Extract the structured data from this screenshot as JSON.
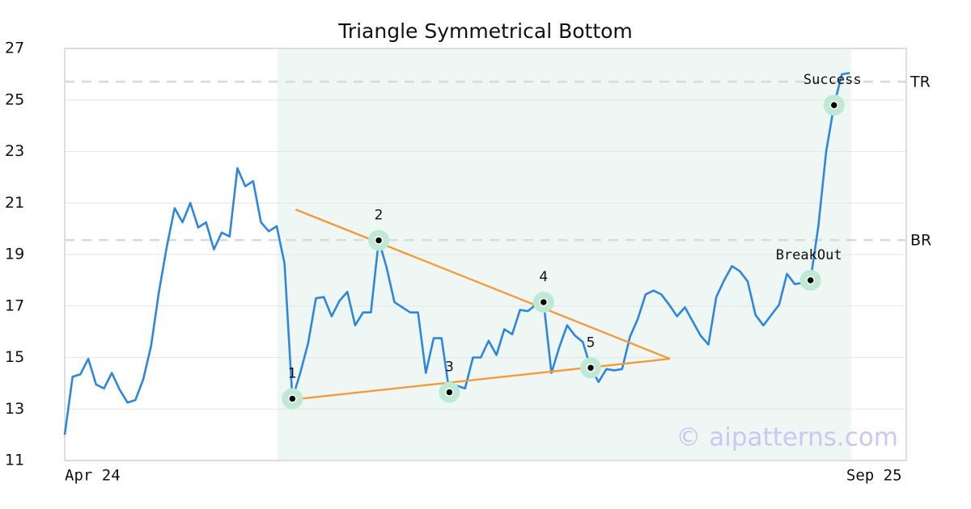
{
  "chart_data": {
    "type": "line",
    "title": "Triangle Symmetrical Bottom",
    "series": [
      {
        "color": "#2e86de",
        "values": [
          12.0,
          14.25,
          14.35,
          14.95,
          13.95,
          13.8,
          14.4,
          13.75,
          13.25,
          13.35,
          14.15,
          15.45,
          17.55,
          19.3,
          20.8,
          20.25,
          21.0,
          20.05,
          20.25,
          19.2,
          19.85,
          19.7,
          22.35,
          21.65,
          21.85,
          20.25,
          19.9,
          20.1,
          18.65,
          13.4,
          14.4,
          15.55,
          17.3,
          17.35,
          16.6,
          17.2,
          17.55,
          16.25,
          16.75,
          16.75,
          19.55,
          18.5,
          17.15,
          16.95,
          16.75,
          16.75,
          14.4,
          15.75,
          15.75,
          13.65,
          13.9,
          13.8,
          15.0,
          15.0,
          15.65,
          15.1,
          16.1,
          15.9,
          16.85,
          16.8,
          17.05,
          17.15,
          14.4,
          15.4,
          16.25,
          15.85,
          15.6,
          14.6,
          14.05,
          14.55,
          14.5,
          14.55,
          15.8,
          16.5,
          17.45,
          17.6,
          17.45,
          17.05,
          16.6,
          16.95,
          16.4,
          15.85,
          15.5,
          17.35,
          18.0,
          18.55,
          18.35,
          17.95,
          16.65,
          16.25,
          16.65,
          17.05,
          18.25,
          17.85,
          17.9,
          18.0,
          20.1,
          23.0,
          24.8,
          26.0,
          26.05
        ]
      }
    ],
    "xlim": [
      0,
      107.2
    ],
    "xticks": [
      {
        "value": 0,
        "label": "Apr 24"
      },
      {
        "value": 103.1,
        "label": "Sep 25"
      }
    ],
    "ylim": [
      11,
      27
    ],
    "yticks": [
      11,
      13,
      15,
      17,
      19,
      21,
      23,
      25,
      27
    ],
    "grid": true,
    "highlight_xlim": [
      27.1,
      100.2
    ],
    "levels": [
      {
        "label": "TR",
        "value": 25.71
      },
      {
        "label": "BR",
        "value": 19.56
      }
    ],
    "triangle": [
      {
        "color": "#f59a3c",
        "x": [
          29.4,
          77.1
        ],
        "y": [
          20.75,
          14.95
        ]
      },
      {
        "color": "#f59a3c",
        "x": [
          29.4,
          77.1
        ],
        "y": [
          13.38,
          14.95
        ]
      }
    ],
    "points": [
      {
        "x": 29,
        "label": "1"
      },
      {
        "x": 40,
        "label": "2"
      },
      {
        "x": 49,
        "label": "3"
      },
      {
        "x": 61,
        "label": "4"
      },
      {
        "x": 67,
        "label": "5"
      },
      {
        "x": 95,
        "label": "BreakOut"
      },
      {
        "x": 98,
        "label": "Success"
      }
    ],
    "watermark": "© aipatterns.com"
  }
}
